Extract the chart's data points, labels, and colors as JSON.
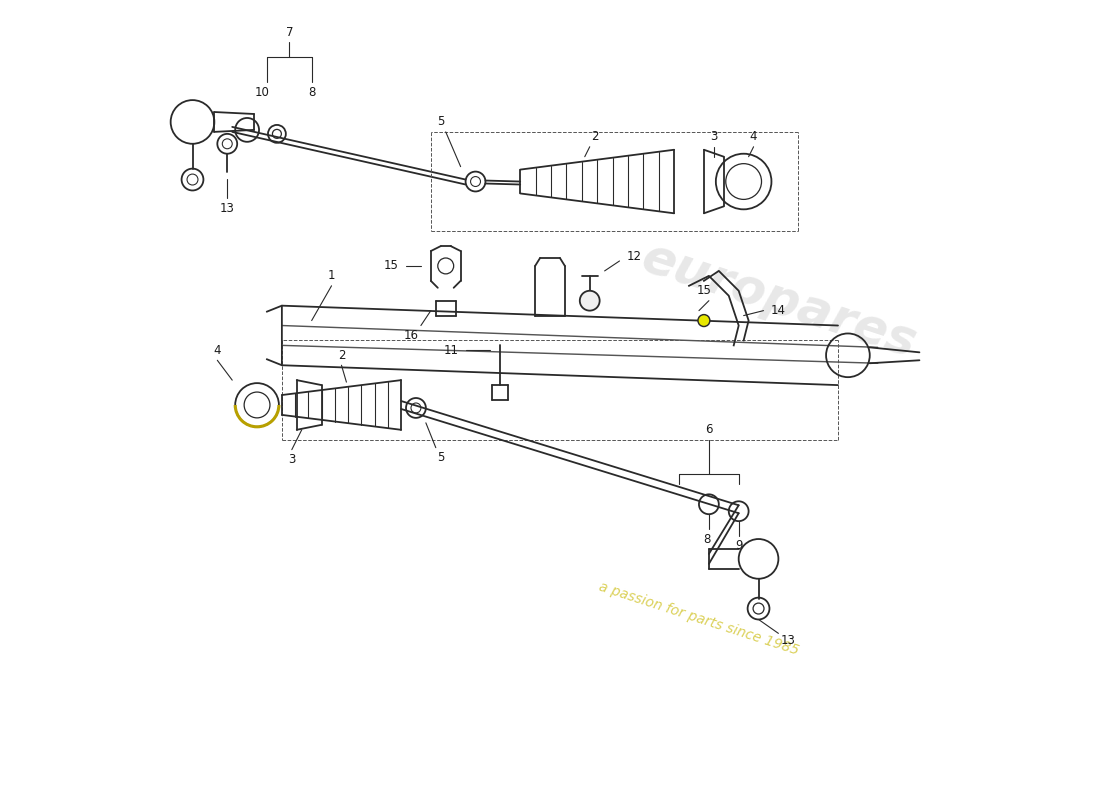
{
  "background_color": "#ffffff",
  "line_color": "#2a2a2a",
  "label_color": "#1a1a1a",
  "watermark1": "europares",
  "watermark2": "a passion for parts since 1985",
  "fig_width": 11.0,
  "fig_height": 8.0,
  "dpi": 100
}
